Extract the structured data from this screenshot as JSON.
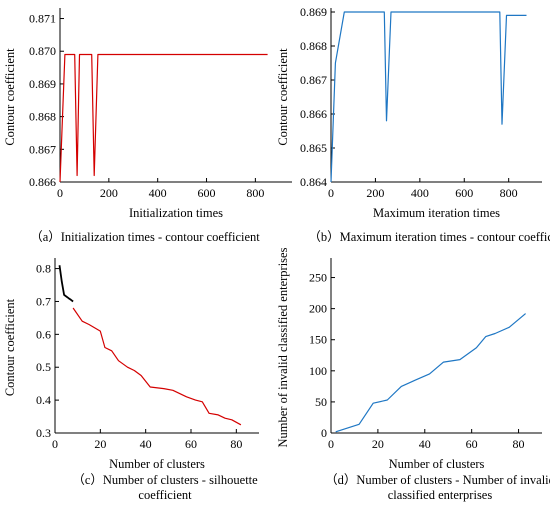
{
  "chart_data": [
    {
      "id": "a",
      "type": "line",
      "xlabel": "Initialization times",
      "ylabel": "Contour coefficient",
      "caption_lines": [
        "（a）Initialization times - contour coefficient"
      ],
      "xlim": [
        0,
        950
      ],
      "ylim": [
        0.866,
        0.8712
      ],
      "xticks": [
        0,
        200,
        400,
        600,
        800
      ],
      "yticks": [
        0.866,
        0.867,
        0.868,
        0.869,
        0.87,
        0.871
      ],
      "ytick_labels": [
        "0.866",
        "0.867",
        "0.868",
        "0.869",
        "0.870",
        "0.871"
      ],
      "color": "#d40000",
      "series": [
        {
          "x": [
            0,
            20,
            30,
            60,
            70,
            80,
            95,
            130,
            140,
            155,
            165,
            180,
            850
          ],
          "y": [
            0.866,
            0.8699,
            0.8699,
            0.8699,
            0.8662,
            0.8699,
            0.8699,
            0.8699,
            0.8662,
            0.8699,
            0.8699,
            0.8699,
            0.8699
          ]
        }
      ]
    },
    {
      "id": "b",
      "type": "line",
      "xlabel": "Maximum iteration times",
      "ylabel": "Contour coefficient",
      "caption_lines": [
        "（b）Maximum iteration times - contour coefficient"
      ],
      "xlim": [
        0,
        950
      ],
      "ylim": [
        0.864,
        0.869
      ],
      "xticks": [
        0,
        200,
        400,
        600,
        800
      ],
      "yticks": [
        0.864,
        0.865,
        0.866,
        0.867,
        0.868,
        0.869
      ],
      "ytick_labels": [
        "0.864",
        "0.865",
        "0.866",
        "0.867",
        "0.868",
        "0.869"
      ],
      "color": "#1f77c4",
      "series": [
        {
          "x": [
            0,
            20,
            60,
            240,
            250,
            270,
            720,
            760,
            770,
            790,
            880
          ],
          "y": [
            0.864,
            0.8675,
            0.869,
            0.869,
            0.8658,
            0.869,
            0.869,
            0.869,
            0.8657,
            0.8689,
            0.8689
          ]
        }
      ]
    },
    {
      "id": "c",
      "type": "line",
      "xlabel": "Number of clusters",
      "ylabel": "Contour coefficient",
      "caption_lines": [
        "（c）Number of clusters - silhouette",
        "coefficient"
      ],
      "xlim": [
        0,
        90
      ],
      "ylim": [
        0.3,
        0.82
      ],
      "xticks": [
        0,
        20,
        40,
        60,
        80
      ],
      "yticks": [
        0.3,
        0.4,
        0.5,
        0.6,
        0.7,
        0.8
      ],
      "ytick_labels": [
        "0.3",
        "0.4",
        "0.5",
        "0.6",
        "0.7",
        "0.8"
      ],
      "color": "#d40000",
      "series": [
        {
          "name": "",
          "color": "#000000",
          "x": [
            2,
            3,
            4,
            5,
            6,
            7,
            8
          ],
          "y": [
            0.81,
            0.76,
            0.72,
            0.715,
            0.71,
            0.705,
            0.7
          ]
        },
        {
          "name": "",
          "color": "#d40000",
          "x": [
            8,
            12,
            15,
            20,
            22,
            25,
            28,
            32,
            35,
            38,
            42,
            48,
            52,
            58,
            62,
            65,
            68,
            72,
            75,
            78,
            82
          ],
          "y": [
            0.68,
            0.64,
            0.63,
            0.61,
            0.56,
            0.55,
            0.52,
            0.5,
            0.49,
            0.475,
            0.44,
            0.435,
            0.43,
            0.41,
            0.4,
            0.395,
            0.36,
            0.355,
            0.345,
            0.34,
            0.325
          ]
        }
      ]
    },
    {
      "id": "d",
      "type": "line",
      "xlabel": "Number of clusters",
      "ylabel": "Number of invalid classified enterprises",
      "caption_lines": [
        "（d）Number of clusters - Number of invalid",
        "classified enterprises"
      ],
      "xlim": [
        0,
        90
      ],
      "ylim": [
        0,
        275
      ],
      "xticks": [
        0,
        20,
        40,
        60,
        80
      ],
      "yticks": [
        0,
        50,
        100,
        150,
        200,
        250
      ],
      "ytick_labels": [
        "0",
        "50",
        "100",
        "150",
        "200",
        "250"
      ],
      "color": "#1f77c4",
      "series": [
        {
          "x": [
            2,
            12,
            18,
            24,
            30,
            36,
            42,
            48,
            55,
            62,
            66,
            70,
            76,
            83
          ],
          "y": [
            2,
            14,
            48,
            53,
            75,
            85,
            95,
            114,
            118,
            137,
            155,
            160,
            170,
            192
          ]
        }
      ]
    }
  ]
}
